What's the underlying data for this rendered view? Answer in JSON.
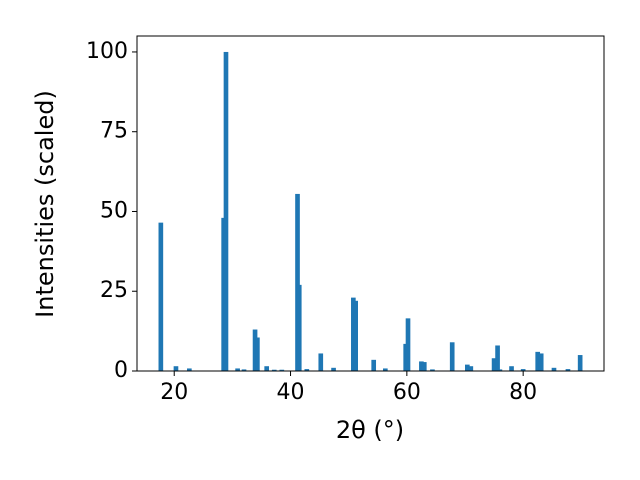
{
  "chart_data": {
    "type": "bar",
    "xlabel": "2θ (°)",
    "ylabel": "Intensities (scaled)",
    "color": "#1f77b4",
    "x": [
      17.7,
      20.3,
      22.6,
      28.5,
      28.9,
      30.9,
      32.0,
      33.9,
      34.3,
      35.9,
      37.2,
      38.5,
      41.2,
      41.5,
      42.8,
      45.2,
      47.4,
      50.8,
      51.2,
      54.3,
      56.3,
      59.8,
      60.2,
      62.5,
      63.0,
      64.4,
      67.8,
      70.4,
      71.0,
      75.0,
      75.6,
      76.0,
      78.0,
      80.0,
      82.5,
      83.1,
      85.3,
      87.7,
      89.8
    ],
    "values": [
      46.5,
      1.5,
      0.8,
      48,
      100,
      0.8,
      0.5,
      13,
      10.5,
      1.5,
      0.4,
      0.4,
      55.5,
      27,
      0.6,
      5.5,
      1,
      23,
      22,
      3.5,
      0.8,
      8.5,
      16.5,
      3,
      2.8,
      0.5,
      9,
      2,
      1.5,
      4,
      8,
      0.5,
      1.5,
      0.6,
      6,
      5.5,
      1,
      0.6,
      5
    ],
    "xlim": [
      13.6,
      93.9
    ],
    "ylim": [
      0,
      105
    ],
    "xticks": [
      20,
      40,
      60,
      80
    ],
    "yticks": [
      0,
      25,
      50,
      75,
      100
    ]
  }
}
